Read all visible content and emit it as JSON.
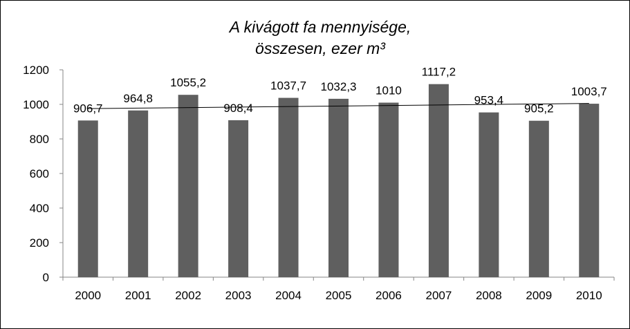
{
  "chart_data": {
    "type": "bar",
    "title_lines": [
      "A kivágott fa mennyisége,",
      "összesen, ezer m³"
    ],
    "xlabel": "",
    "ylabel": "",
    "categories": [
      "2000",
      "2001",
      "2002",
      "2003",
      "2004",
      "2005",
      "2006",
      "2007",
      "2008",
      "2009",
      "2010"
    ],
    "values": [
      906.7,
      964.8,
      1055.2,
      908.4,
      1037.7,
      1032.3,
      1010,
      1117.2,
      953.4,
      905.2,
      1003.7
    ],
    "data_labels": [
      "906,7",
      "964,8",
      "1055,2",
      "908,4",
      "1037,7",
      "1032,3",
      "1010",
      "1117,2",
      "953,4",
      "905,2",
      "1003,7"
    ],
    "ylim": [
      0,
      1200
    ],
    "yticks": [
      0,
      200,
      400,
      600,
      800,
      1000,
      1200
    ],
    "trendline": {
      "type": "linear",
      "color": "#000000"
    },
    "bar_color": "#5f5f5f",
    "grid": false,
    "legend": "none"
  }
}
